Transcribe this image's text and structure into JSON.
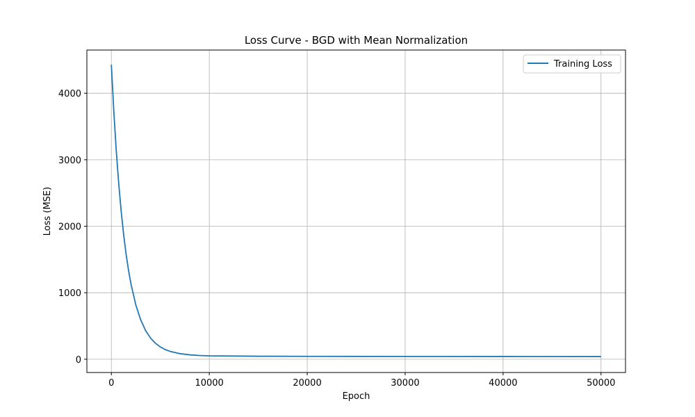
{
  "chart_data": {
    "type": "line",
    "title": "Loss Curve - BGD with Mean Normalization",
    "xlabel": "Epoch",
    "ylabel": "Loss (MSE)",
    "xlim": [
      -2500,
      52500
    ],
    "ylim": [
      -200,
      4650
    ],
    "xticks": [
      0,
      10000,
      20000,
      30000,
      40000,
      50000
    ],
    "yticks": [
      0,
      1000,
      2000,
      3000,
      4000
    ],
    "grid": true,
    "legend_position": "top-right",
    "colors": {
      "series": "#1f77b4",
      "grid": "#b0b0b0",
      "frame": "#000000"
    },
    "series": [
      {
        "name": "Training Loss",
        "x": [
          0,
          250,
          500,
          750,
          1000,
          1250,
          1500,
          1750,
          2000,
          2500,
          3000,
          3500,
          4000,
          4500,
          5000,
          5500,
          6000,
          7000,
          8000,
          9000,
          10000,
          15000,
          20000,
          30000,
          40000,
          50000
        ],
        "y": [
          4430,
          3730,
          3140,
          2645,
          2230,
          1880,
          1585,
          1340,
          1135,
          815,
          590,
          430,
          318,
          240,
          185,
          145,
          118,
          84,
          66,
          56,
          51,
          45,
          43,
          42,
          41,
          40
        ]
      }
    ]
  }
}
